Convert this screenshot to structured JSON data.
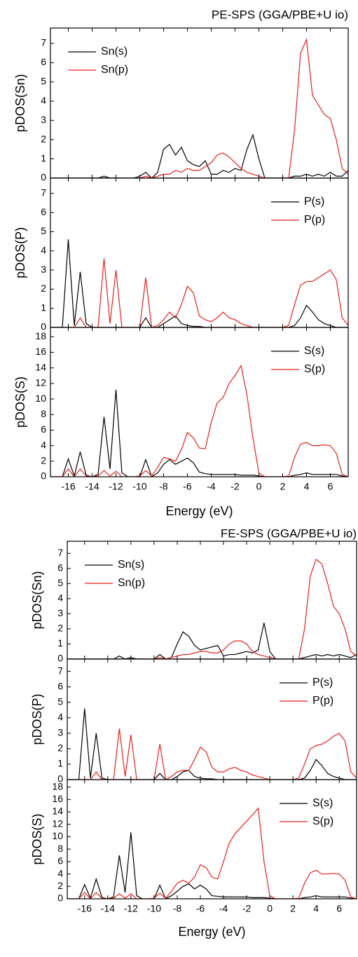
{
  "chart_data": [
    {
      "type": "line",
      "title": "PE-SPS (GGA/PBE+U io)",
      "ylabel": "pDOS(Sn)",
      "legend": "upper left",
      "show_xtick_labels": false,
      "xlim": [
        -17.5,
        7.5
      ],
      "ylim": [
        0,
        7.8
      ],
      "xticks": [
        -16,
        -14,
        -12,
        -10,
        -8,
        -6,
        -4,
        -2,
        0,
        2,
        4,
        6
      ],
      "yticks": [
        0,
        1,
        2,
        3,
        4,
        5,
        6,
        7
      ],
      "x": [
        -17.5,
        -17,
        -16.5,
        -16,
        -15.5,
        -15,
        -14.5,
        -14,
        -13.5,
        -13,
        -12.5,
        -12,
        -11.5,
        -11,
        -10.5,
        -10,
        -9.5,
        -9,
        -8.5,
        -8,
        -7.5,
        -7,
        -6.5,
        -6,
        -5.5,
        -5,
        -4.5,
        -4,
        -3.5,
        -3,
        -2.5,
        -2,
        -1.5,
        -1,
        -0.5,
        0,
        0.5,
        1,
        1.5,
        2,
        2.5,
        3,
        3.5,
        4,
        4.5,
        5,
        5.5,
        6,
        6.5,
        7,
        7.5
      ],
      "series": [
        {
          "name": "Sn(s)",
          "color": "#000000",
          "values": [
            0,
            0,
            0,
            0,
            0,
            0,
            0,
            0,
            0,
            0.1,
            0,
            0,
            0,
            0,
            0,
            0.1,
            0.3,
            0,
            0.3,
            1.5,
            1.75,
            1.2,
            1.6,
            0.9,
            0.7,
            0.6,
            0.9,
            0.2,
            0.2,
            0.4,
            0.3,
            0.5,
            0.4,
            1.5,
            2.25,
            1.0,
            0,
            0,
            0,
            0,
            0,
            0.1,
            0.1,
            0.2,
            0.1,
            0.2,
            0.1,
            0.3,
            0.1,
            0.1,
            0.4
          ]
        },
        {
          "name": "Sn(p)",
          "color": "#e8201c",
          "values": [
            0,
            0,
            0,
            0,
            0,
            0,
            0,
            0,
            0,
            0,
            0,
            0,
            0,
            0,
            0,
            0,
            0.1,
            0,
            0.1,
            0.2,
            0.2,
            0.4,
            0.3,
            0.5,
            0.4,
            0.4,
            0.6,
            0.8,
            1.2,
            1.3,
            1.1,
            0.8,
            0.5,
            0.3,
            0.2,
            0.1,
            0,
            0,
            0,
            0,
            0,
            2.5,
            6.5,
            7.2,
            4.3,
            3.8,
            3.3,
            3.1,
            2,
            0.5,
            0.2
          ]
        }
      ]
    },
    {
      "type": "line",
      "ylabel": "pDOS(P)",
      "legend": "upper right",
      "show_xtick_labels": false,
      "xlim": [
        -17.5,
        7.5
      ],
      "ylim": [
        0,
        7.8
      ],
      "xticks": [
        -16,
        -14,
        -12,
        -10,
        -8,
        -6,
        -4,
        -2,
        0,
        2,
        4,
        6
      ],
      "yticks": [
        0,
        1,
        2,
        3,
        4,
        5,
        6,
        7
      ],
      "x": [
        -17.5,
        -17,
        -16.5,
        -16,
        -15.5,
        -15,
        -14.5,
        -14,
        -13.5,
        -13,
        -12.5,
        -12,
        -11.5,
        -11,
        -10.5,
        -10,
        -9.5,
        -9,
        -8.5,
        -8,
        -7.5,
        -7,
        -6.5,
        -6,
        -5.5,
        -5,
        -4.5,
        -4,
        -3.5,
        -3,
        -2.5,
        -2,
        -1.5,
        -1,
        -0.5,
        0,
        0.5,
        1,
        1.5,
        2,
        2.5,
        3,
        3.5,
        4,
        4.5,
        5,
        5.5,
        6,
        6.5,
        7,
        7.5
      ],
      "series": [
        {
          "name": "P(s)",
          "color": "#000000",
          "values": [
            0,
            0,
            0,
            4.6,
            0.1,
            2.9,
            0.2,
            0,
            0,
            0,
            0,
            0,
            0,
            0,
            0,
            0,
            0.5,
            0,
            0,
            0.2,
            0.4,
            0.6,
            0.2,
            0.1,
            0.05,
            0.05,
            0,
            0,
            0,
            0,
            0,
            0,
            0,
            0,
            0,
            0,
            0,
            0,
            0,
            0,
            0,
            0.1,
            0.5,
            1.15,
            0.8,
            0.4,
            0.2,
            0.1,
            0,
            0,
            0
          ]
        },
        {
          "name": "P(p)",
          "color": "#e8201c",
          "values": [
            0,
            0,
            0,
            0,
            0,
            0.5,
            0,
            0,
            0,
            3.6,
            0.2,
            3.0,
            0,
            0,
            0,
            0,
            2.6,
            0,
            0.1,
            0.4,
            0.8,
            0.5,
            1.2,
            2.15,
            1.8,
            0.6,
            0.4,
            0.3,
            0.5,
            0.8,
            0.5,
            0.4,
            0.2,
            0.1,
            0,
            0,
            0,
            0,
            0,
            0,
            0.1,
            1.2,
            2.2,
            2.4,
            2.4,
            2.6,
            2.8,
            3.0,
            2.5,
            0.5,
            0.1
          ]
        }
      ]
    },
    {
      "type": "line",
      "ylabel": "pDOS(S)",
      "xlabel": "Energy (eV)",
      "legend": "upper right",
      "show_xtick_labels": true,
      "xlim": [
        -17.5,
        7.5
      ],
      "ylim": [
        0,
        19.2
      ],
      "xticks": [
        -16,
        -14,
        -12,
        -10,
        -8,
        -6,
        -4,
        -2,
        0,
        2,
        4,
        6
      ],
      "yticks": [
        0,
        2,
        4,
        6,
        8,
        10,
        12,
        14,
        16,
        18
      ],
      "x": [
        -17.5,
        -17,
        -16.5,
        -16,
        -15.5,
        -15,
        -14.5,
        -14,
        -13.5,
        -13,
        -12.5,
        -12,
        -11.5,
        -11,
        -10.5,
        -10,
        -9.5,
        -9,
        -8.5,
        -8,
        -7.5,
        -7,
        -6.5,
        -6,
        -5.5,
        -5,
        -4.5,
        -4,
        -3.5,
        -3,
        -2.5,
        -2,
        -1.5,
        -1,
        -0.5,
        0,
        0.5,
        1,
        1.5,
        2,
        2.5,
        3,
        3.5,
        4,
        4.5,
        5,
        5.5,
        6,
        6.5,
        7,
        7.5
      ],
      "series": [
        {
          "name": "S(s)",
          "color": "#000000",
          "values": [
            0,
            0,
            0,
            2.3,
            0.1,
            3.2,
            0.2,
            0,
            0.3,
            7.7,
            1,
            11.2,
            0.5,
            0,
            0,
            0,
            2.2,
            0,
            0.5,
            1.6,
            2.2,
            1.6,
            2,
            2.4,
            1.8,
            0.6,
            0.4,
            0.3,
            0.3,
            0.3,
            0.3,
            0.3,
            0.2,
            0.2,
            0.2,
            0.1,
            0,
            0,
            0,
            0,
            0,
            0.2,
            0.3,
            0.5,
            0.3,
            0.3,
            0.3,
            0.3,
            0.3,
            0.1,
            0
          ]
        },
        {
          "name": "S(p)",
          "color": "#e8201c",
          "values": [
            0,
            0,
            0,
            1.0,
            0,
            1.0,
            0.1,
            0,
            0.1,
            0.8,
            0.1,
            0.7,
            0,
            0,
            0,
            0.1,
            0.8,
            0.1,
            1.2,
            2.5,
            2.3,
            2,
            3.5,
            5.7,
            5,
            3.7,
            3.6,
            7,
            9.5,
            10.2,
            12,
            13,
            14.3,
            10.5,
            5,
            0.5,
            0,
            0,
            0,
            0,
            0.1,
            2.5,
            4.2,
            4.4,
            4,
            4,
            4.1,
            4,
            3,
            0.3,
            0
          ]
        }
      ]
    },
    {
      "type": "line",
      "title": "FE-SPS (GGA/PBE+U io)",
      "ylabel": "pDOS(Sn)",
      "legend": "upper left",
      "show_xtick_labels": false,
      "xlim": [
        -17.5,
        7.5
      ],
      "ylim": [
        0,
        7.8
      ],
      "xticks": [
        -16,
        -14,
        -12,
        -10,
        -8,
        -6,
        -4,
        -2,
        0,
        2,
        4,
        6
      ],
      "yticks": [
        0,
        1,
        2,
        3,
        4,
        5,
        6,
        7
      ],
      "x": [
        -17.5,
        -17,
        -16.5,
        -16,
        -15.5,
        -15,
        -14.5,
        -14,
        -13.5,
        -13,
        -12.5,
        -12,
        -11.5,
        -11,
        -10.5,
        -10,
        -9.5,
        -9,
        -8.5,
        -8,
        -7.5,
        -7,
        -6.5,
        -6,
        -5.5,
        -5,
        -4.5,
        -4,
        -3.5,
        -3,
        -2.5,
        -2,
        -1.5,
        -1,
        -0.5,
        0,
        0.5,
        1,
        1.5,
        2,
        2.5,
        3,
        3.5,
        4,
        4.5,
        5,
        5.5,
        6,
        6.5,
        7,
        7.5
      ],
      "series": [
        {
          "name": "Sn(s)",
          "color": "#000000",
          "values": [
            0,
            0,
            0,
            0,
            0,
            0,
            0,
            0,
            0,
            0.2,
            0,
            0.1,
            0,
            0,
            0,
            0,
            0.3,
            0,
            0.1,
            1.0,
            1.8,
            1.5,
            0.9,
            0.6,
            0.7,
            0.8,
            0.9,
            0.2,
            0.3,
            0.3,
            0.4,
            0.5,
            0.4,
            0.6,
            2.4,
            0.5,
            0,
            0,
            0,
            0,
            0,
            0.1,
            0.2,
            0.3,
            0.2,
            0.3,
            0.2,
            0.3,
            0.2,
            0.1,
            0.3
          ]
        },
        {
          "name": "Sn(p)",
          "color": "#e8201c",
          "values": [
            0,
            0,
            0,
            0,
            0,
            0,
            0,
            0,
            0,
            0,
            0,
            0,
            0,
            0,
            0,
            0,
            0.1,
            0,
            0.1,
            0.2,
            0.3,
            0.3,
            0.4,
            0.5,
            0.5,
            0.4,
            0.4,
            0.6,
            1.0,
            1.2,
            1.2,
            1.0,
            0.5,
            0.3,
            0.2,
            0.1,
            0,
            0,
            0,
            0,
            0,
            2,
            5.5,
            6.6,
            6.3,
            5,
            3.5,
            3,
            2,
            0.5,
            0.2
          ]
        }
      ]
    },
    {
      "type": "line",
      "ylabel": "pDOS(P)",
      "legend": "upper right",
      "show_xtick_labels": false,
      "xlim": [
        -17.5,
        7.5
      ],
      "ylim": [
        0,
        7.8
      ],
      "xticks": [
        -16,
        -14,
        -12,
        -10,
        -8,
        -6,
        -4,
        -2,
        0,
        2,
        4,
        6
      ],
      "yticks": [
        0,
        1,
        2,
        3,
        4,
        5,
        6,
        7
      ],
      "x": [
        -17.5,
        -17,
        -16.5,
        -16,
        -15.5,
        -15,
        -14.5,
        -14,
        -13.5,
        -13,
        -12.5,
        -12,
        -11.5,
        -11,
        -10.5,
        -10,
        -9.5,
        -9,
        -8.5,
        -8,
        -7.5,
        -7,
        -6.5,
        -6,
        -5.5,
        -5,
        -4.5,
        -4,
        -3.5,
        -3,
        -2.5,
        -2,
        -1.5,
        -1,
        -0.5,
        0,
        0.5,
        1,
        1.5,
        2,
        2.5,
        3,
        3.5,
        4,
        4.5,
        5,
        5.5,
        6,
        6.5,
        7,
        7.5
      ],
      "series": [
        {
          "name": "P(s)",
          "color": "#000000",
          "values": [
            0,
            0,
            0,
            4.6,
            0.1,
            3.0,
            0.1,
            0,
            0,
            0,
            0,
            0,
            0,
            0,
            0,
            0,
            0.4,
            0,
            0,
            0.2,
            0.5,
            0.6,
            0.2,
            0.1,
            0.05,
            0.05,
            0,
            0,
            0,
            0,
            0,
            0,
            0,
            0,
            0,
            0,
            0,
            0,
            0,
            0,
            0,
            0.1,
            0.6,
            1.3,
            0.9,
            0.4,
            0.2,
            0.1,
            0,
            0,
            0
          ]
        },
        {
          "name": "P(p)",
          "color": "#e8201c",
          "values": [
            0,
            0,
            0,
            0,
            0,
            0.5,
            0,
            0,
            0,
            3.3,
            0.2,
            2.9,
            0,
            0,
            0,
            0,
            2.3,
            0,
            0.2,
            0.5,
            0.6,
            0.6,
            1.3,
            2.1,
            1.8,
            0.8,
            0.5,
            0.5,
            0.7,
            0.8,
            0.6,
            0.5,
            0.3,
            0.2,
            0.1,
            0,
            0,
            0,
            0,
            0,
            0.1,
            1.0,
            2.0,
            2.2,
            2.3,
            2.5,
            2.8,
            3.0,
            2.5,
            0.5,
            0.1
          ]
        }
      ]
    },
    {
      "type": "line",
      "ylabel": "pDOS(S)",
      "xlabel": "Energy (eV)",
      "legend": "upper right",
      "show_xtick_labels": true,
      "xlim": [
        -17.5,
        7.5
      ],
      "ylim": [
        0,
        19.2
      ],
      "xticks": [
        -16,
        -14,
        -12,
        -10,
        -8,
        -6,
        -4,
        -2,
        0,
        2,
        4,
        6
      ],
      "yticks": [
        0,
        2,
        4,
        6,
        8,
        10,
        12,
        14,
        16,
        18
      ],
      "x": [
        -17.5,
        -17,
        -16.5,
        -16,
        -15.5,
        -15,
        -14.5,
        -14,
        -13.5,
        -13,
        -12.5,
        -12,
        -11.5,
        -11,
        -10.5,
        -10,
        -9.5,
        -9,
        -8.5,
        -8,
        -7.5,
        -7,
        -6.5,
        -6,
        -5.5,
        -5,
        -4.5,
        -4,
        -3.5,
        -3,
        -2.5,
        -2,
        -1.5,
        -1,
        -0.5,
        0,
        0.5,
        1,
        1.5,
        2,
        2.5,
        3,
        3.5,
        4,
        4.5,
        5,
        5.5,
        6,
        6.5,
        7,
        7.5
      ],
      "series": [
        {
          "name": "S(s)",
          "color": "#000000",
          "values": [
            0,
            0,
            0,
            2.3,
            0.1,
            3.2,
            0.2,
            0,
            0.3,
            7.0,
            1,
            10.7,
            0.5,
            0,
            0,
            0,
            2.2,
            0,
            0.5,
            1.2,
            2.0,
            2.4,
            1.6,
            2.2,
            1.6,
            0.5,
            0.4,
            0.3,
            0.3,
            0.3,
            0.3,
            0.3,
            0.2,
            0.2,
            0.2,
            0.1,
            0,
            0,
            0,
            0,
            0,
            0.2,
            0.3,
            0.5,
            0.3,
            0.3,
            0.3,
            0.3,
            0.3,
            0.1,
            0
          ]
        },
        {
          "name": "S(p)",
          "color": "#e8201c",
          "values": [
            0,
            0,
            0,
            1.0,
            0,
            1.0,
            0.1,
            0,
            0.1,
            0.8,
            0.1,
            0.8,
            0,
            0,
            0,
            0.1,
            0.9,
            0.1,
            1.2,
            2.5,
            3,
            2.5,
            3.5,
            5.5,
            5,
            3.5,
            3.2,
            6,
            9,
            10.5,
            11.5,
            12.5,
            13.5,
            14.6,
            6,
            0.5,
            0,
            0,
            0,
            0,
            0.1,
            2.5,
            4.2,
            4.6,
            4,
            4,
            4.1,
            4,
            3,
            0.3,
            0
          ]
        }
      ]
    }
  ]
}
